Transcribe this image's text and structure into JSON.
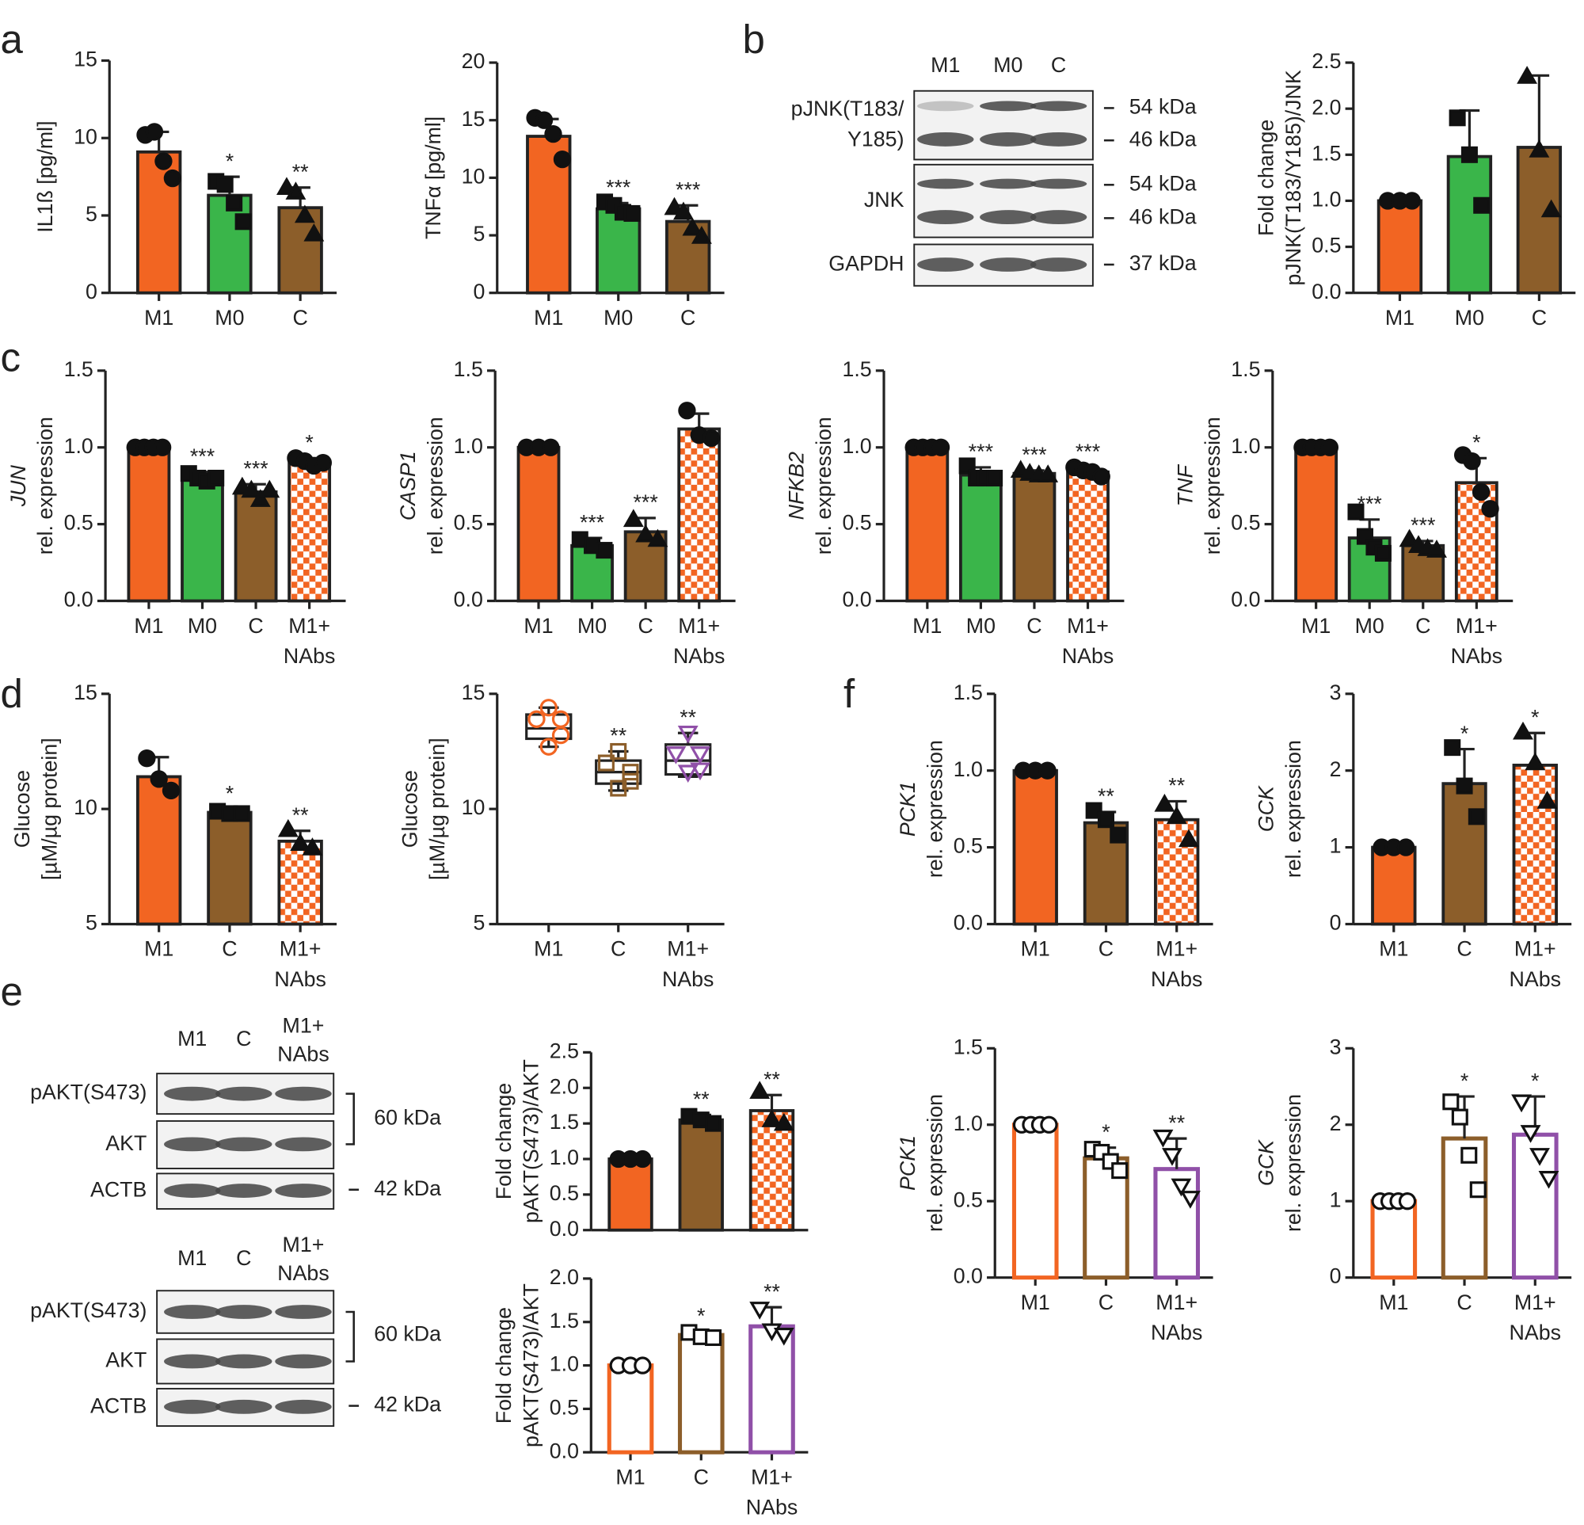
{
  "panel_labels": [
    "a",
    "b",
    "c",
    "d",
    "e",
    "f"
  ],
  "blots": [
    {
      "lanes": [
        "M1",
        "M0",
        "C"
      ],
      "rows": [
        [
          "pJNK(T183/",
          "Y185)"
        ],
        [
          "JNK"
        ],
        [
          "GAPDH"
        ]
      ],
      "sizes": [
        "54 kDa",
        "46 kDa",
        "54 kDa",
        "46 kDa",
        "37 kDa"
      ]
    },
    {
      "lanes": [
        "M1",
        "C",
        [
          "M1+",
          "NAbs"
        ]
      ],
      "rows": [
        [
          "pAKT(S473)"
        ],
        [
          "AKT"
        ],
        [
          "ACTB"
        ]
      ],
      "sizes": [
        "60 kDa",
        "42 kDa"
      ]
    },
    {
      "lanes": [
        "M1",
        "C",
        [
          "M1+",
          "NAbs"
        ]
      ],
      "rows": [
        [
          "pAKT(S473)"
        ],
        [
          "AKT"
        ],
        [
          "ACTB"
        ]
      ],
      "sizes": [
        "60 kDa",
        "42 kDa"
      ]
    }
  ],
  "chart_data": [
    {
      "type": "bar",
      "ylabel": [
        "IL1ß [pg/ml]"
      ],
      "categories": [
        "M1",
        "M0",
        "C"
      ],
      "ylim": [
        0,
        15
      ],
      "yticks": [
        0,
        5,
        10,
        15
      ],
      "values": [
        9.1,
        6.3,
        5.5
      ],
      "errors": [
        1.3,
        1.2,
        1.3
      ],
      "colors": [
        "#f26522",
        "#3ab54a",
        "#8c5e2a"
      ],
      "styles": [
        "solid",
        "solid",
        "solid"
      ],
      "markers": [
        "circle",
        "square",
        "triangle"
      ],
      "points": [
        [
          10.2,
          10.4,
          8.5,
          7.4
        ],
        [
          7.2,
          7.0,
          5.8,
          4.6
        ],
        [
          6.8,
          6.5,
          5.0,
          3.8
        ]
      ],
      "annotations": [
        null,
        "*",
        "**"
      ]
    },
    {
      "type": "bar",
      "ylabel": [
        "TNFα [pg/ml]"
      ],
      "categories": [
        "M1",
        "M0",
        "C"
      ],
      "ylim": [
        0,
        20
      ],
      "yticks": [
        0,
        5,
        10,
        15,
        20
      ],
      "values": [
        13.6,
        7.3,
        6.2
      ],
      "errors": [
        1.5,
        0.5,
        1.4
      ],
      "colors": [
        "#f26522",
        "#3ab54a",
        "#8c5e2a"
      ],
      "styles": [
        "solid",
        "solid",
        "solid"
      ],
      "markers": [
        "circle",
        "square",
        "triangle"
      ],
      "points": [
        [
          15.2,
          15.0,
          13.8,
          11.6
        ],
        [
          7.9,
          7.6,
          7.0,
          6.9
        ],
        [
          7.4,
          7.0,
          5.6,
          4.9
        ]
      ],
      "annotations": [
        null,
        "***",
        "***"
      ]
    },
    {
      "type": "bar",
      "ylabel": [
        "Fold change",
        "pJNK(T183/Y185)/JNK"
      ],
      "categories": [
        "M1",
        "M0",
        "C"
      ],
      "ylim": [
        0,
        2.5
      ],
      "yticks": [
        {
          "value": 0,
          "label": "0.0"
        },
        0.5,
        {
          "value": 1,
          "label": "1.0"
        },
        1.5,
        {
          "value": 2,
          "label": "2.0"
        },
        2.5
      ],
      "values": [
        1.0,
        1.48,
        1.58
      ],
      "errors": [
        0.02,
        0.5,
        0.78
      ],
      "colors": [
        "#f26522",
        "#3ab54a",
        "#8c5e2a"
      ],
      "styles": [
        "solid",
        "solid",
        "solid"
      ],
      "markers": [
        "circle",
        "square",
        "triangle"
      ],
      "points": [
        [
          1,
          1,
          1
        ],
        [
          1.9,
          1.5,
          0.95
        ],
        [
          2.35,
          1.55,
          0.9
        ]
      ],
      "annotations": [
        null,
        null,
        null
      ]
    },
    {
      "type": "bar",
      "ylabel": [
        "JUN",
        "rel. expression"
      ],
      "ylabel_italic": [
        true,
        false
      ],
      "categories": [
        "M1",
        "M0",
        "C",
        [
          "M1+",
          "NAbs"
        ]
      ],
      "ylim": [
        0,
        1.5
      ],
      "yticks": [
        {
          "value": 0,
          "label": "0.0"
        },
        0.5,
        {
          "value": 1,
          "label": "1.0"
        },
        1.5
      ],
      "values": [
        1.0,
        0.8,
        0.71,
        0.9
      ],
      "errors": [
        0.005,
        0.04,
        0.05,
        0.03
      ],
      "colors": [
        "#f26522",
        "#3ab54a",
        "#8c5e2a",
        "#f26522"
      ],
      "styles": [
        "solid",
        "solid",
        "solid",
        "checkered"
      ],
      "markers": [
        "circle",
        "square",
        "triangle",
        "circle"
      ],
      "points": [
        [
          1,
          1,
          1,
          1
        ],
        [
          0.83,
          0.8,
          0.78,
          0.8
        ],
        [
          0.74,
          0.72,
          0.66,
          0.72
        ],
        [
          0.93,
          0.91,
          0.88,
          0.9
        ]
      ],
      "annotations": [
        null,
        "***",
        "***",
        "*"
      ]
    },
    {
      "type": "bar",
      "ylabel": [
        "CASP1",
        "rel. expression"
      ],
      "ylabel_italic": [
        true,
        false
      ],
      "categories": [
        "M1",
        "M0",
        "C",
        [
          "M1+",
          "NAbs"
        ]
      ],
      "ylim": [
        0,
        1.5
      ],
      "yticks": [
        {
          "value": 0,
          "label": "0.0"
        },
        0.5,
        {
          "value": 1,
          "label": "1.0"
        },
        1.5
      ],
      "values": [
        1.0,
        0.36,
        0.45,
        1.12
      ],
      "errors": [
        0.005,
        0.05,
        0.09,
        0.1
      ],
      "colors": [
        "#f26522",
        "#3ab54a",
        "#8c5e2a",
        "#f26522"
      ],
      "styles": [
        "solid",
        "solid",
        "solid",
        "checkered"
      ],
      "markers": [
        "circle",
        "square",
        "triangle",
        "circle"
      ],
      "points": [
        [
          1,
          1,
          1
        ],
        [
          0.4,
          0.36,
          0.33
        ],
        [
          0.53,
          0.43,
          0.4
        ],
        [
          1.24,
          1.08,
          1.06
        ]
      ],
      "annotations": [
        null,
        "***",
        "***",
        null
      ]
    },
    {
      "type": "bar",
      "ylabel": [
        "NFKB2",
        "rel. expression"
      ],
      "ylabel_italic": [
        true,
        false
      ],
      "categories": [
        "M1",
        "M0",
        "C",
        [
          "M1+",
          "NAbs"
        ]
      ],
      "ylim": [
        0,
        1.5
      ],
      "yticks": [
        {
          "value": 0,
          "label": "0.0"
        },
        0.5,
        {
          "value": 1,
          "label": "1.0"
        },
        1.5
      ],
      "values": [
        1.0,
        0.82,
        0.83,
        0.84
      ],
      "errors": [
        0.005,
        0.05,
        0.02,
        0.03
      ],
      "colors": [
        "#f26522",
        "#3ab54a",
        "#8c5e2a",
        "#f26522"
      ],
      "styles": [
        "solid",
        "solid",
        "solid",
        "checkered"
      ],
      "markers": [
        "circle",
        "square",
        "triangle",
        "circle"
      ],
      "points": [
        [
          1,
          1,
          1,
          1
        ],
        [
          0.88,
          0.8,
          0.8,
          0.8
        ],
        [
          0.85,
          0.83,
          0.82,
          0.82
        ],
        [
          0.87,
          0.85,
          0.84,
          0.81
        ]
      ],
      "annotations": [
        null,
        "***",
        "***",
        "***"
      ]
    },
    {
      "type": "bar",
      "ylabel": [
        "TNF",
        "rel. expression"
      ],
      "ylabel_italic": [
        true,
        false
      ],
      "categories": [
        "M1",
        "M0",
        "C",
        [
          "M1+",
          "NAbs"
        ]
      ],
      "ylim": [
        0,
        1.5
      ],
      "yticks": [
        {
          "value": 0,
          "label": "0.0"
        },
        0.5,
        {
          "value": 1,
          "label": "1.0"
        },
        1.5
      ],
      "values": [
        1.0,
        0.41,
        0.36,
        0.77
      ],
      "errors": [
        0.005,
        0.12,
        0.03,
        0.16
      ],
      "colors": [
        "#f26522",
        "#3ab54a",
        "#8c5e2a",
        "#f26522"
      ],
      "styles": [
        "solid",
        "solid",
        "solid",
        "checkered"
      ],
      "markers": [
        "circle",
        "square",
        "triangle",
        "circle"
      ],
      "points": [
        [
          1,
          1,
          1,
          1
        ],
        [
          0.58,
          0.42,
          0.35,
          0.31
        ],
        [
          0.4,
          0.36,
          0.34,
          0.33
        ],
        [
          0.95,
          0.91,
          0.71,
          0.6
        ]
      ],
      "annotations": [
        null,
        "***",
        "***",
        "*"
      ]
    },
    {
      "type": "bar",
      "ylabel": [
        "Glucose",
        "[µM/µg protein]"
      ],
      "categories": [
        "M1",
        "C",
        [
          "M1+",
          "NAbs"
        ]
      ],
      "ylim": [
        5,
        15
      ],
      "yticks": [
        5,
        10,
        15
      ],
      "values": [
        11.4,
        9.85,
        8.6
      ],
      "errors": [
        0.85,
        0.15,
        0.45
      ],
      "colors": [
        "#f26522",
        "#8c5e2a",
        "#f26522"
      ],
      "styles": [
        "solid",
        "solid",
        "checkered"
      ],
      "markers": [
        "circle",
        "square",
        "triangle"
      ],
      "points": [
        [
          12.2,
          11.3,
          10.8
        ],
        [
          9.9,
          9.8,
          9.8
        ],
        [
          9.1,
          8.5,
          8.3
        ]
      ],
      "annotations": [
        null,
        "*",
        "**"
      ]
    },
    {
      "type": "box",
      "ylabel": [
        "Glucose",
        "[µM/µg protein]"
      ],
      "categories": [
        "M1",
        "C",
        [
          "M1+",
          "NAbs"
        ]
      ],
      "ylim": [
        5,
        15
      ],
      "yticks": [
        5,
        10,
        15
      ],
      "medians": [
        13.5,
        11.6,
        12.1
      ],
      "q1": [
        13.05,
        11.1,
        11.5
      ],
      "q3": [
        14.1,
        12.1,
        12.8
      ],
      "mins": [
        12.7,
        10.8,
        11.4
      ],
      "maxs": [
        14.4,
        12.5,
        13.3
      ],
      "colors": [
        "#f26522",
        "#8c5e2a",
        "#9050a8"
      ],
      "markers": [
        "circle",
        "square",
        "triangle-down"
      ],
      "points": [
        [
          14.4,
          13.9,
          13.9,
          13.2,
          12.7
        ],
        [
          12.5,
          12.0,
          11.6,
          11.2,
          10.9
        ],
        [
          13.3,
          12.4,
          12.4,
          11.7,
          11.6
        ]
      ],
      "annotations": [
        null,
        "**",
        "**"
      ]
    },
    {
      "type": "bar",
      "ylabel": [
        "Fold change",
        "pAKT(S473)/AKT"
      ],
      "ylim": [
        0,
        2.5
      ],
      "yticks": [
        {
          "value": 0,
          "label": "0.0"
        },
        0.5,
        {
          "value": 1,
          "label": "1.0"
        },
        1.5,
        {
          "value": 2,
          "label": "2.0"
        },
        2.5
      ],
      "values": [
        1.0,
        1.55,
        1.68
      ],
      "errors": [
        0.01,
        0.07,
        0.22
      ],
      "colors": [
        "#f26522",
        "#8c5e2a",
        "#f26522"
      ],
      "styles": [
        "solid",
        "solid",
        "checkered"
      ],
      "markers": [
        "circle",
        "square",
        "triangle"
      ],
      "points": [
        [
          1,
          1,
          1
        ],
        [
          1.6,
          1.55,
          1.5
        ],
        [
          1.95,
          1.55,
          1.5
        ]
      ],
      "annotations": [
        null,
        "**",
        "**"
      ]
    },
    {
      "type": "bar",
      "ylabel": [
        "Fold change",
        "pAKT(S473)/AKT"
      ],
      "categories": [
        "M1",
        "C",
        [
          "M1+",
          "NAbs"
        ]
      ],
      "ylim": [
        0,
        2
      ],
      "yticks": [
        {
          "value": 0,
          "label": "0.0"
        },
        0.5,
        {
          "value": 1,
          "label": "1.0"
        },
        1.5,
        {
          "value": 2,
          "label": "2.0"
        }
      ],
      "values": [
        1.0,
        1.35,
        1.45
      ],
      "errors": [
        0.01,
        0.04,
        0.22
      ],
      "colors": [
        "#f26522",
        "#8c5e2a",
        "#9050a8"
      ],
      "styles": [
        "hollow",
        "hollow",
        "hollow"
      ],
      "markers": [
        "circle",
        "square",
        "triangle-down"
      ],
      "points": [
        [
          1,
          1,
          1
        ],
        [
          1.38,
          1.33,
          1.32
        ],
        [
          1.65,
          1.4,
          1.35
        ]
      ],
      "annotations": [
        null,
        "*",
        "**"
      ]
    },
    {
      "type": "bar",
      "ylabel": [
        "PCK1",
        "rel. expression"
      ],
      "ylabel_italic": [
        true,
        false
      ],
      "categories": [
        "M1",
        "C",
        [
          "M1+",
          "NAbs"
        ]
      ],
      "ylim": [
        0,
        1.5
      ],
      "yticks": [
        {
          "value": 0,
          "label": "0.0"
        },
        0.5,
        {
          "value": 1,
          "label": "1.0"
        },
        1.5
      ],
      "values": [
        1.0,
        0.66,
        0.68
      ],
      "errors": [
        0.005,
        0.07,
        0.12
      ],
      "colors": [
        "#f26522",
        "#8c5e2a",
        "#f26522"
      ],
      "styles": [
        "solid",
        "solid",
        "checkered"
      ],
      "markers": [
        "circle",
        "square",
        "triangle"
      ],
      "points": [
        [
          1,
          1,
          1
        ],
        [
          0.74,
          0.68,
          0.58
        ],
        [
          0.78,
          0.7,
          0.55
        ]
      ],
      "annotations": [
        null,
        "**",
        "**"
      ]
    },
    {
      "type": "bar",
      "ylabel": [
        "GCK",
        "rel. expression"
      ],
      "ylabel_italic": [
        true,
        false
      ],
      "categories": [
        "M1",
        "C",
        [
          "M1+",
          "NAbs"
        ]
      ],
      "ylim": [
        0,
        3
      ],
      "yticks": [
        0,
        1,
        2,
        3
      ],
      "values": [
        1.0,
        1.83,
        2.07
      ],
      "errors": [
        0.01,
        0.45,
        0.42
      ],
      "colors": [
        "#f26522",
        "#8c5e2a",
        "#f26522"
      ],
      "styles": [
        "solid",
        "solid",
        "checkered"
      ],
      "markers": [
        "circle",
        "square",
        "triangle"
      ],
      "points": [
        [
          1,
          1,
          1
        ],
        [
          2.3,
          1.8,
          1.4
        ],
        [
          2.5,
          2.1,
          1.6
        ]
      ],
      "annotations": [
        null,
        "*",
        "*"
      ]
    },
    {
      "type": "bar",
      "ylabel": [
        "PCK1",
        "rel. expression"
      ],
      "ylabel_italic": [
        true,
        false
      ],
      "categories": [
        "M1",
        "C",
        [
          "M1+",
          "NAbs"
        ]
      ],
      "ylim": [
        0,
        1.5
      ],
      "yticks": [
        {
          "value": 0,
          "label": "0.0"
        },
        0.5,
        {
          "value": 1,
          "label": "1.0"
        },
        1.5
      ],
      "values": [
        1.0,
        0.78,
        0.71
      ],
      "errors": [
        0.005,
        0.07,
        0.2
      ],
      "colors": [
        "#f26522",
        "#8c5e2a",
        "#9050a8"
      ],
      "styles": [
        "hollow",
        "hollow",
        "hollow"
      ],
      "markers": [
        "circle",
        "square",
        "triangle-down"
      ],
      "points": [
        [
          1,
          1,
          1,
          1
        ],
        [
          0.84,
          0.82,
          0.76,
          0.7
        ],
        [
          0.92,
          0.8,
          0.6,
          0.52
        ]
      ],
      "annotations": [
        null,
        "*",
        "**"
      ]
    },
    {
      "type": "bar",
      "ylabel": [
        "GCK",
        "rel. expression"
      ],
      "ylabel_italic": [
        true,
        false
      ],
      "categories": [
        "M1",
        "C",
        [
          "M1+",
          "NAbs"
        ]
      ],
      "ylim": [
        0,
        3
      ],
      "yticks": [
        0,
        1,
        2,
        3
      ],
      "values": [
        1.0,
        1.82,
        1.87
      ],
      "errors": [
        0.01,
        0.55,
        0.5
      ],
      "colors": [
        "#f26522",
        "#8c5e2a",
        "#9050a8"
      ],
      "styles": [
        "hollow",
        "hollow",
        "hollow"
      ],
      "markers": [
        "circle",
        "square",
        "triangle-down"
      ],
      "points": [
        [
          1,
          1,
          1,
          1
        ],
        [
          2.3,
          2.1,
          1.6,
          1.15
        ],
        [
          2.3,
          1.9,
          1.6,
          1.3
        ]
      ],
      "annotations": [
        null,
        "*",
        "*"
      ]
    }
  ]
}
